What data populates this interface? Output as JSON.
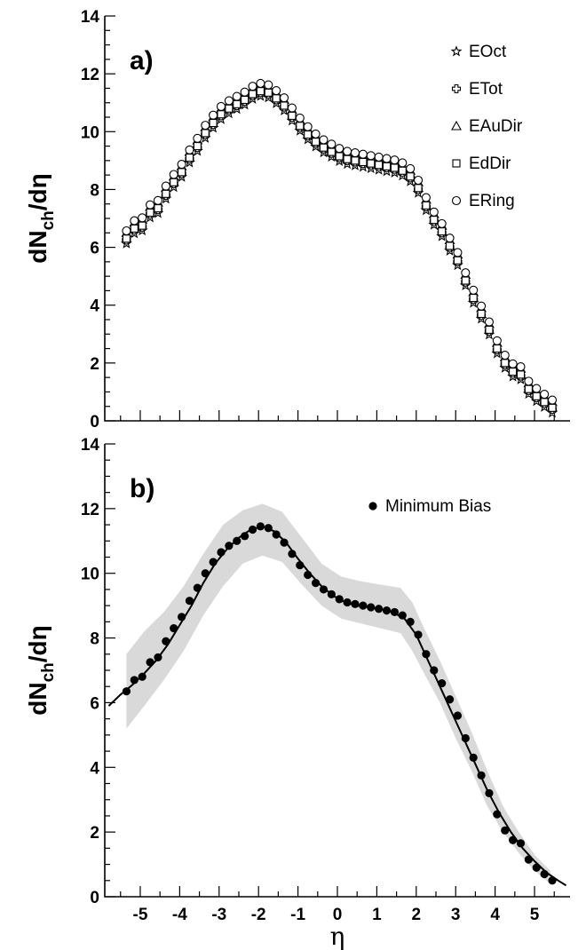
{
  "figure": {
    "xlabel": "η",
    "panels": [
      "a)",
      "b)"
    ]
  },
  "chart_data": [
    {
      "type": "scatter",
      "panel_label": "a)",
      "ylabel": "dN_ch/dη",
      "xlim": [
        -5.9,
        5.9
      ],
      "ylim": [
        0,
        14
      ],
      "x_ticks": [
        -5,
        -4,
        -3,
        -2,
        -1,
        0,
        1,
        2,
        3,
        4,
        5
      ],
      "y_ticks": [
        0,
        2,
        4,
        6,
        8,
        10,
        12,
        14
      ],
      "legend_position": "top-right",
      "series": [
        {
          "name": "EOct",
          "marker": "star",
          "offset": -0.22
        },
        {
          "name": "ETot",
          "marker": "cross",
          "offset": -0.1
        },
        {
          "name": "EAuDir",
          "marker": "triangle",
          "offset": 0.15
        },
        {
          "name": "EdDir",
          "marker": "square",
          "offset": -0.05
        },
        {
          "name": "ERing",
          "marker": "circle",
          "offset": 0.22
        }
      ],
      "x": [
        -5.35,
        -5.15,
        -4.95,
        -4.75,
        -4.55,
        -4.35,
        -4.15,
        -3.95,
        -3.75,
        -3.55,
        -3.35,
        -3.15,
        -2.95,
        -2.75,
        -2.55,
        -2.35,
        -2.15,
        -1.95,
        -1.75,
        -1.55,
        -1.35,
        -1.15,
        -0.95,
        -0.75,
        -0.55,
        -0.35,
        -0.15,
        0.05,
        0.25,
        0.45,
        0.65,
        0.85,
        1.05,
        1.25,
        1.45,
        1.65,
        1.85,
        2.05,
        2.25,
        2.45,
        2.65,
        2.85,
        3.05,
        3.25,
        3.45,
        3.65,
        3.85,
        4.05,
        4.25,
        4.45,
        4.65,
        4.85,
        5.05,
        5.25,
        5.45
      ],
      "y": [
        6.35,
        6.7,
        6.8,
        7.25,
        7.4,
        7.9,
        8.3,
        8.65,
        9.15,
        9.55,
        10.0,
        10.35,
        10.65,
        10.85,
        11.0,
        11.15,
        11.35,
        11.45,
        11.4,
        11.2,
        10.95,
        10.6,
        10.25,
        9.95,
        9.7,
        9.5,
        9.35,
        9.2,
        9.1,
        9.05,
        9.0,
        8.95,
        8.9,
        8.85,
        8.8,
        8.7,
        8.5,
        8.1,
        7.5,
        7.0,
        6.6,
        6.1,
        5.6,
        4.9,
        4.3,
        3.75,
        3.2,
        2.55,
        2.05,
        1.75,
        1.65,
        1.15,
        0.9,
        0.7,
        0.5
      ]
    },
    {
      "type": "scatter",
      "panel_label": "b)",
      "ylabel": "dN_ch/dη",
      "xlabel": "η",
      "xlim": [
        -5.9,
        5.9
      ],
      "ylim": [
        0,
        14
      ],
      "x_ticks": [
        -5,
        -4,
        -3,
        -2,
        -1,
        0,
        1,
        2,
        3,
        4,
        5
      ],
      "y_ticks": [
        0,
        2,
        4,
        6,
        8,
        10,
        12,
        14
      ],
      "legend_position": "top-right",
      "series": [
        {
          "name": "Minimum Bias",
          "marker": "filled-circle"
        }
      ],
      "x": [
        -5.35,
        -5.15,
        -4.95,
        -4.75,
        -4.55,
        -4.35,
        -4.15,
        -3.95,
        -3.75,
        -3.55,
        -3.35,
        -3.15,
        -2.95,
        -2.75,
        -2.55,
        -2.35,
        -2.15,
        -1.95,
        -1.75,
        -1.55,
        -1.35,
        -1.15,
        -0.95,
        -0.75,
        -0.55,
        -0.35,
        -0.15,
        0.05,
        0.25,
        0.45,
        0.65,
        0.85,
        1.05,
        1.25,
        1.45,
        1.65,
        1.85,
        2.05,
        2.25,
        2.45,
        2.65,
        2.85,
        3.05,
        3.25,
        3.45,
        3.65,
        3.85,
        4.05,
        4.25,
        4.45,
        4.65,
        4.85,
        5.05,
        5.25,
        5.45
      ],
      "y": [
        6.35,
        6.7,
        6.8,
        7.25,
        7.4,
        7.9,
        8.3,
        8.65,
        9.15,
        9.55,
        10.0,
        10.35,
        10.65,
        10.85,
        11.0,
        11.15,
        11.35,
        11.45,
        11.4,
        11.2,
        10.95,
        10.6,
        10.25,
        9.95,
        9.7,
        9.5,
        9.35,
        9.2,
        9.1,
        9.05,
        9.0,
        8.95,
        8.9,
        8.85,
        8.8,
        8.7,
        8.5,
        8.1,
        7.5,
        7.0,
        6.6,
        6.1,
        5.6,
        4.9,
        4.3,
        3.75,
        3.2,
        2.55,
        2.05,
        1.75,
        1.65,
        1.15,
        0.9,
        0.7,
        0.5
      ],
      "fit_curve": {
        "x": [
          -5.8,
          -5.5,
          -5.2,
          -4.9,
          -4.6,
          -4.3,
          -4.0,
          -3.7,
          -3.4,
          -3.1,
          -2.8,
          -2.5,
          -2.2,
          -1.9,
          -1.6,
          -1.3,
          -1.0,
          -0.7,
          -0.4,
          -0.1,
          0.2,
          0.5,
          0.8,
          1.1,
          1.4,
          1.7,
          2.0,
          2.3,
          2.6,
          2.9,
          3.2,
          3.5,
          3.8,
          4.1,
          4.4,
          4.7,
          5.0,
          5.3,
          5.6,
          5.8
        ],
        "y": [
          5.9,
          6.25,
          6.55,
          6.9,
          7.3,
          7.8,
          8.4,
          9.0,
          9.7,
          10.3,
          10.75,
          11.1,
          11.35,
          11.45,
          11.3,
          10.95,
          10.45,
          10.0,
          9.6,
          9.3,
          9.1,
          9.0,
          8.95,
          8.9,
          8.8,
          8.6,
          8.1,
          7.3,
          6.5,
          5.7,
          4.9,
          4.1,
          3.3,
          2.6,
          2.0,
          1.5,
          1.1,
          0.75,
          0.5,
          0.35
        ]
      },
      "error_band": {
        "x": [
          -5.35,
          -4.9,
          -4.4,
          -3.9,
          -3.4,
          -2.9,
          -2.4,
          -1.9,
          -1.4,
          -0.9,
          -0.4,
          0.1,
          0.6,
          1.1,
          1.6,
          1.9,
          2.2,
          2.6,
          3.0,
          3.4,
          3.8,
          4.2,
          4.6,
          5.0,
          5.4
        ],
        "upper": [
          7.5,
          8.2,
          8.8,
          9.6,
          10.6,
          11.5,
          11.95,
          12.15,
          11.9,
          11.1,
          10.3,
          9.9,
          9.75,
          9.65,
          9.55,
          9.1,
          8.3,
          7.3,
          6.2,
          5.1,
          3.9,
          2.8,
          2.0,
          1.3,
          0.8
        ],
        "lower": [
          5.2,
          5.9,
          6.7,
          7.6,
          8.7,
          9.6,
          10.3,
          10.55,
          10.35,
          9.65,
          9.0,
          8.6,
          8.45,
          8.3,
          8.15,
          7.6,
          6.9,
          6.0,
          4.9,
          3.9,
          2.8,
          2.0,
          1.35,
          0.8,
          0.4
        ]
      }
    }
  ]
}
